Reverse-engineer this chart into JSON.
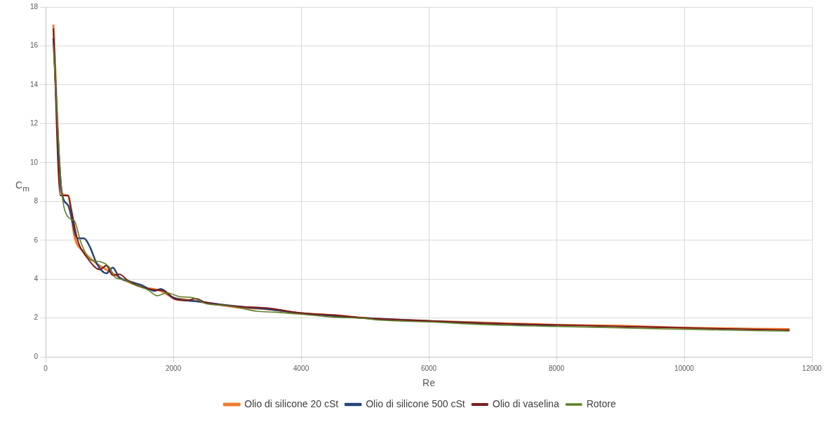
{
  "chart_data": {
    "type": "line",
    "xlabel": "Re",
    "ylabel": "C$_{m}$",
    "xlim": [
      0,
      12000
    ],
    "xticks": [
      0,
      2000,
      4000,
      6000,
      8000,
      10000,
      12000
    ],
    "ylim": [
      0,
      18
    ],
    "yticks": [
      0,
      2,
      4,
      6,
      8,
      10,
      12,
      14,
      16,
      18
    ],
    "grid": true,
    "legend": "bottom",
    "marker": "none",
    "line_style": "solid",
    "series": [
      {
        "name": "Olio di silicone 20 cSt",
        "color": "#ed7d31",
        "x": [
          120,
          250,
          350,
          450,
          600,
          800,
          1000,
          1200,
          1500,
          1800,
          2000,
          2200,
          2500,
          3000,
          3500,
          4000,
          4500,
          5000,
          6000,
          7000,
          8000,
          9000,
          10000,
          11000,
          11650
        ],
        "values": [
          17.1,
          8.4,
          8.3,
          6.2,
          5.4,
          4.8,
          4.4,
          4.0,
          3.6,
          3.4,
          3.05,
          2.95,
          2.8,
          2.55,
          2.45,
          2.25,
          2.15,
          2.0,
          1.85,
          1.75,
          1.65,
          1.6,
          1.5,
          1.45,
          1.43
        ]
      },
      {
        "name": "Olio di silicone 500 cSt",
        "color": "#264478",
        "x": [
          120,
          250,
          350,
          500,
          600,
          700,
          800,
          950,
          1050,
          1150,
          1300,
          1500,
          1700,
          1800,
          2000,
          2400,
          3000,
          3500,
          4000,
          5000,
          6000,
          7000,
          8000
        ],
        "values": [
          16.4,
          8.5,
          7.8,
          6.1,
          6.1,
          5.6,
          4.8,
          4.3,
          4.6,
          4.1,
          3.9,
          3.7,
          3.4,
          3.5,
          3.05,
          2.85,
          2.6,
          2.45,
          2.25,
          2.0,
          1.85,
          1.72,
          1.62
        ]
      },
      {
        "name": "Olio di vaselina",
        "color": "#7b1c1c",
        "x": [
          120,
          230,
          350,
          400,
          500,
          650,
          850,
          950,
          1050,
          1150,
          1300,
          1500,
          1700,
          1850,
          2000,
          2200,
          2350,
          2500,
          3000,
          3500,
          4000,
          4500,
          5000,
          6000,
          7000,
          8000,
          9000,
          10000,
          11000,
          11650
        ],
        "values": [
          16.9,
          8.3,
          8.3,
          7.6,
          6.0,
          5.1,
          4.5,
          4.7,
          4.2,
          4.25,
          3.9,
          3.6,
          3.45,
          3.4,
          3.0,
          2.9,
          3.0,
          2.8,
          2.6,
          2.5,
          2.25,
          2.15,
          2.0,
          1.85,
          1.72,
          1.65,
          1.57,
          1.5,
          1.42,
          1.38
        ]
      },
      {
        "name": "Rotore",
        "color": "#5f7f2a",
        "x": [
          120,
          250,
          350,
          450,
          550,
          700,
          850,
          1000,
          1100,
          1200,
          1400,
          1600,
          1750,
          1900,
          2100,
          2300,
          2500,
          2800,
          3000,
          3300,
          3600,
          4000,
          4500,
          5000,
          5200,
          6000,
          7000,
          8000,
          9000,
          10000,
          11000,
          11650
        ],
        "values": [
          16.0,
          8.6,
          7.2,
          7.0,
          5.9,
          5.0,
          4.9,
          4.6,
          4.05,
          4.0,
          3.7,
          3.45,
          3.15,
          3.3,
          3.1,
          3.05,
          2.75,
          2.65,
          2.55,
          2.35,
          2.3,
          2.2,
          2.05,
          1.98,
          1.9,
          1.8,
          1.65,
          1.57,
          1.5,
          1.42,
          1.36,
          1.33
        ]
      }
    ]
  }
}
